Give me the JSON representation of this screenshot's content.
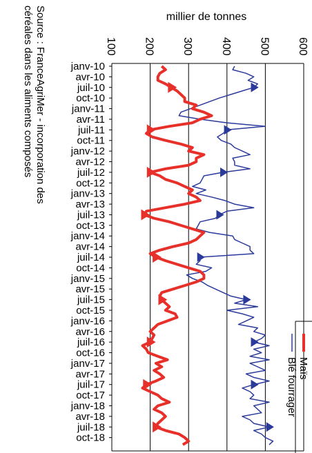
{
  "chart_data": {
    "type": "line",
    "ylabel": "millier de tonnes",
    "source_note": [
      "Source : FranceAgriMer - incorporation des",
      "céréales dans les aliments composés"
    ],
    "ylim": [
      100,
      600
    ],
    "yticks": [
      100,
      200,
      300,
      400,
      500,
      600
    ],
    "x_tick_labels": [
      "janv-10",
      "avr-10",
      "juil-10",
      "oct-10",
      "janv-11",
      "avr-11",
      "juil-11",
      "oct-11",
      "janv-12",
      "avr-12",
      "juil-12",
      "oct-12",
      "janv-13",
      "avr-13",
      "juil-13",
      "oct-13",
      "janv-14",
      "avr-14",
      "juil-14",
      "oct-14",
      "janv-15",
      "avr-15",
      "juil-15",
      "oct-15",
      "janv-16",
      "avr-16",
      "juil-16",
      "oct-16",
      "janv-17",
      "avr-17",
      "juil-17",
      "oct-17",
      "janv-18",
      "avr-18",
      "juil-18",
      "oct-18"
    ],
    "x_start": "janv-10",
    "x_end": "déc-18",
    "grid": true,
    "legend_position": "bottom-right",
    "series": [
      {
        "name": "Blé fourrager",
        "color": "#2b3a9a",
        "marker": "triangle",
        "values": [
          420,
          415,
          450,
          470,
          455,
          480,
          470,
          440,
          410,
          380,
          355,
          330,
          305,
          280,
          275,
          330,
          400,
          500,
          400,
          390,
          375,
          385,
          410,
          420,
          440,
          460,
          415,
          420,
          420,
          460,
          390,
          340,
          335,
          330,
          310,
          345,
          320,
          360,
          395,
          420,
          470,
          400,
          380,
          370,
          330,
          325,
          320,
          355,
          415,
          420,
          440,
          460,
          460,
          470,
          330,
          330,
          320,
          360,
          345,
          295,
          310,
          335,
          350,
          370,
          390,
          410,
          450,
          420,
          480,
          400,
          440,
          470,
          450,
          430,
          480,
          470,
          500,
          490,
          470,
          510,
          470,
          490,
          460,
          510,
          460,
          480,
          500,
          450,
          470,
          510,
          470,
          440,
          460,
          470,
          460,
          510,
          470,
          480,
          490,
          440,
          460,
          470,
          510,
          470,
          490,
          500,
          520,
          510
        ]
      },
      {
        "name": "Maïs",
        "color": "#e8302a",
        "marker": "triangle",
        "values": [
          230,
          240,
          225,
          220,
          220,
          240,
          255,
          270,
          280,
          290,
          290,
          320,
          310,
          340,
          360,
          330,
          310,
          250,
          200,
          190,
          205,
          240,
          280,
          310,
          300,
          340,
          320,
          320,
          300,
          240,
          200,
          225,
          240,
          270,
          290,
          310,
          300,
          320,
          330,
          290,
          240,
          190,
          185,
          210,
          250,
          280,
          310,
          340,
          330,
          320,
          300,
          260,
          225,
          200,
          215,
          240,
          270,
          300,
          330,
          340,
          340,
          320,
          290,
          260,
          230,
          225,
          230,
          240,
          250,
          240,
          265,
          270,
          245,
          220,
          210,
          200,
          210,
          205,
          200,
          180,
          190,
          195,
          220,
          245,
          215,
          230,
          210,
          225,
          235,
          215,
          190,
          180,
          200,
          220,
          230,
          250,
          220,
          210,
          230,
          240,
          230,
          220,
          215,
          240,
          275,
          290,
          300,
          285
        ]
      }
    ]
  }
}
